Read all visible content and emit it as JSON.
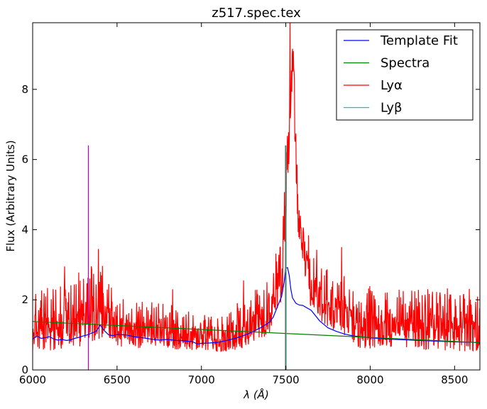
{
  "chart_data": {
    "type": "line",
    "title": "z517.spec.tex",
    "xlabel": "λ (Å)",
    "ylabel": "Flux (Arbitrary Units)",
    "xlim": [
      6000,
      8650
    ],
    "ylim": [
      0,
      9.9
    ],
    "x_ticks": [
      "6000",
      "6500",
      "7000",
      "7500",
      "8000",
      "8500"
    ],
    "y_ticks": [
      "0",
      "2",
      "4",
      "6",
      "8"
    ],
    "grid": false,
    "legend_position": "top-right",
    "series": [
      {
        "name": "Template Fit",
        "color": "#0000ff",
        "x": [
          6000,
          6025,
          6050,
          6075,
          6100,
          6125,
          6150,
          6175,
          6200,
          6225,
          6250,
          6275,
          6300,
          6325,
          6350,
          6375,
          6390,
          6400,
          6425,
          6450,
          6475,
          6500,
          6550,
          6600,
          6650,
          6700,
          6750,
          6800,
          6850,
          6900,
          6950,
          6975,
          7000,
          7050,
          7100,
          7150,
          7200,
          7250,
          7300,
          7350,
          7400,
          7425,
          7450,
          7475,
          7490,
          7500,
          7510,
          7520,
          7530,
          7540,
          7560,
          7580,
          7600,
          7650,
          7700,
          7750,
          7800,
          7850,
          7900,
          8000,
          8100,
          8200,
          8300,
          8400,
          8500,
          8600,
          8650
        ],
        "y": [
          0.88,
          0.97,
          0.9,
          0.92,
          0.95,
          0.88,
          0.85,
          0.87,
          0.84,
          0.86,
          0.9,
          0.93,
          0.97,
          1.0,
          1.05,
          1.1,
          1.2,
          1.28,
          1.12,
          1.0,
          0.98,
          1.01,
          1.0,
          0.95,
          0.92,
          0.88,
          0.85,
          0.87,
          0.84,
          0.83,
          0.8,
          0.74,
          0.76,
          0.77,
          0.79,
          0.84,
          0.9,
          0.98,
          1.08,
          1.2,
          1.35,
          1.5,
          1.8,
          2.1,
          2.5,
          2.9,
          2.92,
          2.7,
          2.3,
          2.05,
          1.9,
          1.85,
          1.84,
          1.7,
          1.4,
          1.2,
          1.1,
          1.02,
          0.97,
          0.92,
          0.88,
          0.86,
          0.84,
          0.82,
          0.8,
          0.79,
          0.78
        ]
      },
      {
        "name": "Spectra",
        "color": "#008000",
        "x": [
          6000,
          8650
        ],
        "y": [
          1.38,
          0.78
        ]
      },
      {
        "name": "Lyα",
        "color": "#ff0000",
        "x": [
          7500,
          7500
        ],
        "y": [
          0,
          6.4
        ]
      },
      {
        "name": "Lyβ",
        "color": "#00cca8",
        "x": [
          7502,
          7502
        ],
        "y": [
          0,
          6.4
        ]
      }
    ],
    "extra_lines": [
      {
        "color": "#c000c0",
        "x": [
          6330,
          6330
        ],
        "y": [
          0,
          6.4
        ]
      },
      {
        "color": "#555555",
        "x": [
          7498,
          7498
        ],
        "y": [
          0,
          6.4
        ]
      }
    ],
    "noisy_spectrum": {
      "color": "#ff0000",
      "x_start": 6000,
      "x_end": 8650,
      "segments": [
        {
          "x": 6000,
          "base": 0.55,
          "amp": 1.6
        },
        {
          "x": 6100,
          "base": 0.5,
          "amp": 1.9
        },
        {
          "x": 6250,
          "base": 0.6,
          "amp": 2.2
        },
        {
          "x": 6400,
          "base": 0.8,
          "amp": 2.4
        },
        {
          "x": 6550,
          "base": 0.6,
          "amp": 1.4
        },
        {
          "x": 6800,
          "base": 0.6,
          "amp": 1.3
        },
        {
          "x": 7100,
          "base": 0.5,
          "amp": 1.0
        },
        {
          "x": 7250,
          "base": 0.6,
          "amp": 1.5
        },
        {
          "x": 7400,
          "base": 1.0,
          "amp": 1.6
        },
        {
          "x": 7480,
          "base": 2.0,
          "amp": 2.0
        },
        {
          "x": 7510,
          "base": 4.5,
          "amp": 3.0
        },
        {
          "x": 7540,
          "base": 8.5,
          "amp": 1.2
        },
        {
          "x": 7570,
          "base": 4.0,
          "amp": 2.0
        },
        {
          "x": 7650,
          "base": 1.6,
          "amp": 2.0
        },
        {
          "x": 7800,
          "base": 1.0,
          "amp": 1.9
        },
        {
          "x": 7950,
          "base": 0.6,
          "amp": 1.8
        },
        {
          "x": 8200,
          "base": 0.6,
          "amp": 1.8
        },
        {
          "x": 8650,
          "base": 0.5,
          "amp": 1.8
        }
      ],
      "spikes": [
        {
          "x": 6190,
          "y": 2.95
        },
        {
          "x": 6390,
          "y": 3.45
        },
        {
          "x": 6830,
          "y": 2.3
        },
        {
          "x": 7250,
          "y": 2.55
        },
        {
          "x": 7525,
          "y": 9.9
        },
        {
          "x": 7830,
          "y": 3.5
        }
      ]
    }
  }
}
